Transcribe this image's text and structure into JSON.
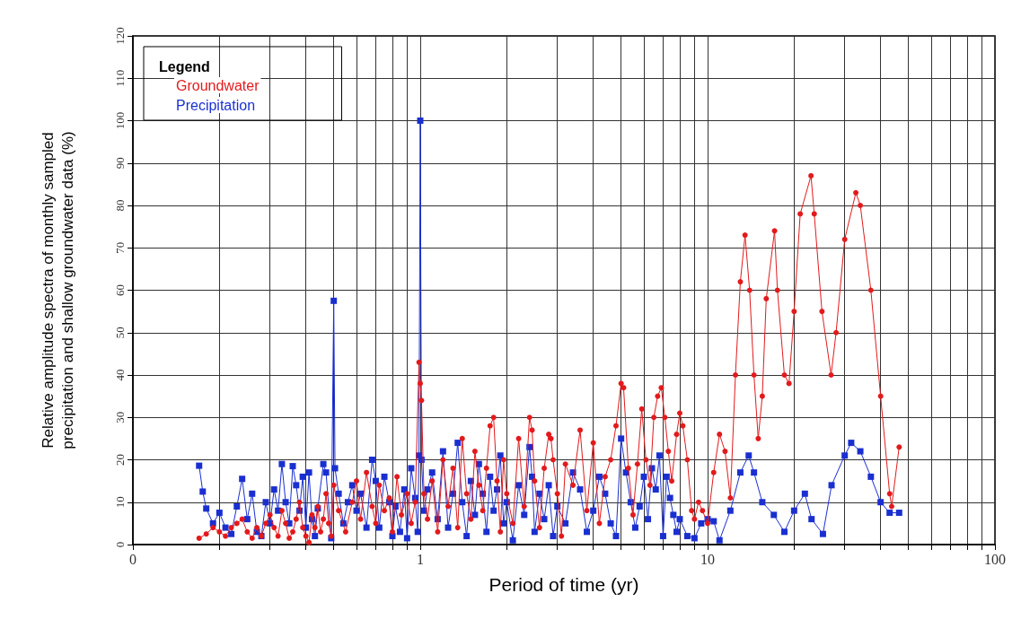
{
  "chart_data": {
    "type": "line",
    "xlabel": "Period of time (yr)",
    "ylabel": "Relative amplitude spectra of monthly sampled precipitation and shallow groundwater data (%)",
    "legend_title": "Legend",
    "legend": "top left",
    "grid": true,
    "log": "x",
    "xlim": [
      0.1,
      100
    ],
    "xticks": [
      {
        "value": 0.1,
        "label": "0"
      },
      {
        "value": 0.2,
        "label": null
      },
      {
        "value": 0.3,
        "label": null
      },
      {
        "value": 0.4,
        "label": null
      },
      {
        "value": 0.5,
        "label": null
      },
      {
        "value": 0.6,
        "label": null
      },
      {
        "value": 0.7,
        "label": null
      },
      {
        "value": 0.8,
        "label": null
      },
      {
        "value": 0.9,
        "label": null
      },
      1,
      {
        "value": 2,
        "label": null
      },
      {
        "value": 3,
        "label": null
      },
      {
        "value": 4,
        "label": null
      },
      {
        "value": 5,
        "label": null
      },
      {
        "value": 6,
        "label": null
      },
      {
        "value": 7,
        "label": null
      },
      {
        "value": 8,
        "label": null
      },
      {
        "value": 9,
        "label": null
      },
      10,
      {
        "value": 20,
        "label": null
      },
      {
        "value": 30,
        "label": null
      },
      {
        "value": 40,
        "label": null
      },
      {
        "value": 50,
        "label": null
      },
      {
        "value": 60,
        "label": null
      },
      {
        "value": 70,
        "label": null
      },
      {
        "value": 80,
        "label": null
      },
      {
        "value": 90,
        "label": null
      },
      100
    ],
    "ylim": [
      0,
      120
    ],
    "yticks": [
      0,
      10,
      20,
      30,
      40,
      50,
      60,
      70,
      80,
      90,
      100,
      110,
      120
    ],
    "series": [
      {
        "name": "Groundwater",
        "color": "#e31a1c",
        "marker": "circle",
        "x": [
          0.17,
          0.18,
          0.19,
          0.2,
          0.21,
          0.22,
          0.23,
          0.24,
          0.25,
          0.26,
          0.27,
          0.28,
          0.29,
          0.3,
          0.31,
          0.32,
          0.33,
          0.34,
          0.35,
          0.36,
          0.37,
          0.38,
          0.39,
          0.4,
          0.41,
          0.42,
          0.43,
          0.44,
          0.45,
          0.46,
          0.47,
          0.48,
          0.49,
          0.5,
          0.52,
          0.55,
          0.58,
          0.6,
          0.62,
          0.65,
          0.68,
          0.7,
          0.72,
          0.75,
          0.78,
          0.8,
          0.83,
          0.86,
          0.9,
          0.93,
          0.96,
          0.99,
          1.0,
          1.01,
          1.03,
          1.06,
          1.1,
          1.15,
          1.2,
          1.25,
          1.3,
          1.35,
          1.4,
          1.45,
          1.5,
          1.55,
          1.6,
          1.65,
          1.7,
          1.75,
          1.8,
          1.85,
          1.9,
          1.95,
          2.0,
          2.1,
          2.2,
          2.3,
          2.4,
          2.45,
          2.5,
          2.6,
          2.7,
          2.8,
          2.85,
          2.9,
          3.0,
          3.1,
          3.2,
          3.4,
          3.6,
          3.8,
          4.0,
          4.2,
          4.4,
          4.6,
          4.8,
          5.0,
          5.1,
          5.3,
          5.5,
          5.7,
          5.9,
          6.1,
          6.3,
          6.5,
          6.7,
          6.9,
          7.1,
          7.3,
          7.5,
          7.8,
          8.0,
          8.2,
          8.5,
          8.8,
          9.0,
          9.3,
          9.6,
          10,
          10.5,
          11,
          11.5,
          12,
          12.5,
          13,
          13.5,
          14,
          14.5,
          15,
          15.5,
          16,
          17.1,
          17.5,
          18.5,
          19.2,
          20,
          21,
          22.9,
          23.5,
          25,
          26.9,
          28,
          30,
          32.8,
          34,
          37,
          40,
          43,
          43.7,
          46.4
        ],
        "values": [
          1.5,
          2.5,
          4,
          3,
          2,
          4,
          5,
          6,
          3,
          1.5,
          4,
          2,
          5,
          7,
          4,
          2,
          8,
          5,
          1.5,
          3,
          6,
          10,
          4,
          2,
          0.5,
          7,
          4,
          9,
          3,
          6,
          12,
          5,
          2,
          14,
          8,
          3,
          10,
          15,
          6,
          17,
          9,
          5,
          14,
          8,
          11,
          3,
          16,
          7,
          12,
          5,
          10,
          43,
          38,
          34,
          12,
          6,
          15,
          3,
          20,
          9,
          18,
          4,
          25,
          12,
          6,
          22,
          14,
          8,
          18,
          28,
          30,
          15,
          3,
          20,
          12,
          5,
          25,
          9,
          30,
          27,
          15,
          4,
          18,
          26,
          25,
          20,
          12,
          2,
          19,
          14,
          27,
          8,
          24,
          5,
          16,
          20,
          28,
          38,
          37,
          18,
          7,
          19,
          32,
          20,
          14,
          30,
          35,
          37,
          30,
          22,
          15,
          26,
          31,
          28,
          20,
          8,
          6,
          10,
          8,
          5,
          17,
          26,
          22,
          11,
          40,
          62,
          73,
          60,
          40,
          25,
          35,
          58,
          74,
          60,
          40,
          38,
          55,
          78,
          87,
          78,
          55,
          40,
          50,
          72,
          83,
          80,
          60,
          35,
          12,
          9,
          23
        ]
      },
      {
        "name": "Precipitation",
        "color": "#1a2fd0",
        "marker": "square",
        "x": [
          0.17,
          0.175,
          0.18,
          0.19,
          0.2,
          0.21,
          0.22,
          0.23,
          0.24,
          0.25,
          0.26,
          0.27,
          0.28,
          0.29,
          0.3,
          0.31,
          0.32,
          0.33,
          0.34,
          0.35,
          0.36,
          0.37,
          0.38,
          0.39,
          0.4,
          0.41,
          0.42,
          0.43,
          0.44,
          0.46,
          0.47,
          0.49,
          0.5,
          0.505,
          0.52,
          0.54,
          0.56,
          0.58,
          0.6,
          0.62,
          0.65,
          0.68,
          0.7,
          0.72,
          0.75,
          0.78,
          0.8,
          0.82,
          0.85,
          0.88,
          0.9,
          0.93,
          0.96,
          0.98,
          0.99,
          1.0,
          1.01,
          1.03,
          1.06,
          1.1,
          1.15,
          1.2,
          1.25,
          1.3,
          1.35,
          1.4,
          1.45,
          1.5,
          1.55,
          1.6,
          1.65,
          1.7,
          1.75,
          1.8,
          1.85,
          1.9,
          1.95,
          2.0,
          2.1,
          2.2,
          2.3,
          2.4,
          2.45,
          2.5,
          2.6,
          2.7,
          2.8,
          2.9,
          3.0,
          3.2,
          3.4,
          3.6,
          3.8,
          4.0,
          4.2,
          4.4,
          4.6,
          4.8,
          5.0,
          5.2,
          5.4,
          5.6,
          5.8,
          6.0,
          6.2,
          6.4,
          6.6,
          6.8,
          7.0,
          7.2,
          7.4,
          7.6,
          7.8,
          8.0,
          8.5,
          9.0,
          9.5,
          10,
          10.5,
          11,
          12,
          13,
          13.9,
          14.5,
          15.5,
          17,
          18.5,
          20,
          21.8,
          23,
          25.2,
          27,
          30,
          31.6,
          34,
          37,
          40,
          43,
          46.4
        ],
        "values": [
          18.6,
          12.5,
          8.5,
          5,
          7.5,
          4,
          2.5,
          9,
          15.5,
          6,
          12,
          3,
          2,
          10,
          5,
          13,
          8,
          19,
          10,
          5,
          18.5,
          14,
          8,
          16,
          4,
          17,
          6,
          2,
          8.5,
          19,
          17,
          1.5,
          57.5,
          18,
          12,
          5,
          10,
          14,
          8,
          12,
          4,
          20,
          15,
          4,
          16,
          10,
          2,
          9,
          3,
          13,
          1.5,
          18,
          11,
          3,
          21,
          100,
          20,
          8,
          13,
          17,
          6,
          22,
          4,
          12,
          24,
          10,
          2,
          15,
          7,
          19,
          12,
          3,
          16,
          8,
          13,
          21,
          5,
          10,
          1,
          14,
          7,
          23,
          16,
          3,
          12,
          6,
          14,
          2,
          9,
          5,
          17,
          13,
          3,
          8,
          16,
          12,
          5,
          2,
          25,
          17,
          10,
          4,
          9,
          16,
          6,
          18,
          13,
          21,
          2,
          16,
          11,
          7,
          3,
          6,
          2,
          1.5,
          5,
          6,
          5.5,
          1,
          8,
          17,
          21,
          17,
          10,
          7,
          3,
          8,
          12,
          6,
          2.5,
          14,
          21,
          24,
          22,
          16,
          10,
          7.5,
          7.5
        ]
      }
    ]
  }
}
